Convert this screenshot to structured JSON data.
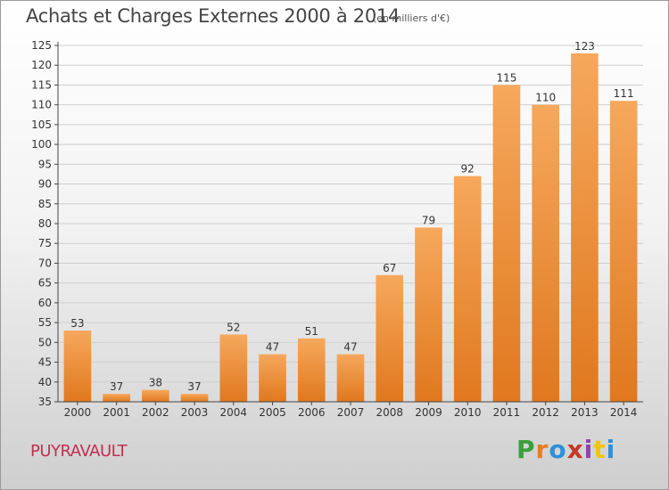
{
  "header": {
    "title": "Achats et Charges Externes 2000 à 2014",
    "unit": "(en milliers d'€)"
  },
  "footer": {
    "town": "PUYRAVAULT",
    "brand": "Proxiti"
  },
  "colors": {
    "bar_light": "#f6a85c",
    "bar_dark": "#e0781e",
    "grid": "#cfcfcf",
    "town": "#c0304f",
    "brand_letters": [
      "#3aa03a",
      "#e67e22",
      "#2f8fd8",
      "#c0392b",
      "#8e44ad",
      "#f1c40f",
      "#2f8fd8"
    ]
  },
  "chart_data": {
    "type": "bar",
    "title": "Achats et Charges Externes 2000 à 2014",
    "subtitle": "(en milliers d'€)",
    "xlabel": "",
    "ylabel": "",
    "categories": [
      "2000",
      "2001",
      "2002",
      "2003",
      "2004",
      "2005",
      "2006",
      "2007",
      "2008",
      "2009",
      "2010",
      "2011",
      "2012",
      "2013",
      "2014"
    ],
    "values": [
      53,
      37,
      38,
      37,
      52,
      47,
      51,
      47,
      67,
      79,
      92,
      115,
      110,
      123,
      111
    ],
    "ylim": [
      35,
      125
    ],
    "yticks": [
      35,
      40,
      45,
      50,
      55,
      60,
      65,
      70,
      75,
      80,
      85,
      90,
      95,
      100,
      105,
      110,
      115,
      120,
      125
    ],
    "grid": true,
    "data_labels": true
  }
}
